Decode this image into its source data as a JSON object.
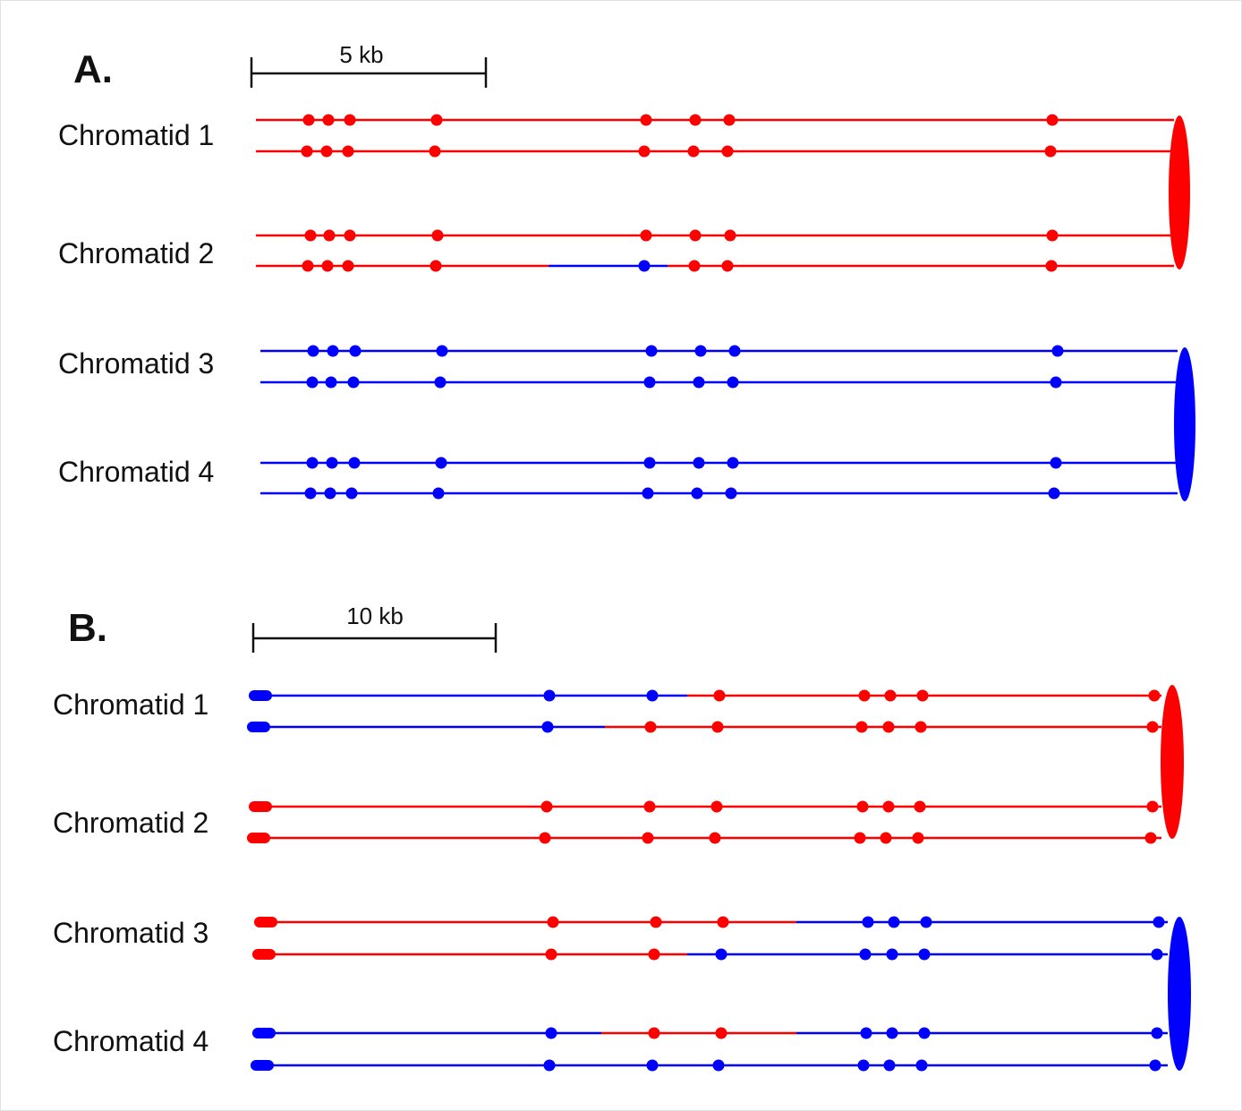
{
  "colors": {
    "maternal": "#ff0000",
    "paternal": "#0000ff",
    "scale": "#111111"
  },
  "panels": [
    {
      "label": "A.",
      "scale_bar": {
        "label": "5 kb"
      },
      "rows": [
        {
          "label": "Chromatid 1",
          "strands": [
            {
              "segments": [
                {
                  "color": "red"
                }
              ]
            },
            {
              "segments": [
                {
                  "color": "red"
                }
              ]
            }
          ]
        },
        {
          "label": "Chromatid 2",
          "strands": [
            {
              "segments": [
                {
                  "color": "red"
                }
              ]
            },
            {
              "segments": [
                {
                  "color": "red"
                },
                {
                  "color": "blue"
                },
                {
                  "color": "red"
                }
              ]
            }
          ]
        },
        {
          "label": "Chromatid 3",
          "strands": [
            {
              "segments": [
                {
                  "color": "blue"
                }
              ]
            },
            {
              "segments": [
                {
                  "color": "blue"
                }
              ]
            }
          ]
        },
        {
          "label": "Chromatid 4",
          "strands": [
            {
              "segments": [
                {
                  "color": "blue"
                }
              ]
            },
            {
              "segments": [
                {
                  "color": "blue"
                }
              ]
            }
          ]
        }
      ],
      "centromeres": [
        {
          "color": "red"
        },
        {
          "color": "blue"
        }
      ]
    },
    {
      "label": "B.",
      "scale_bar": {
        "label": "10 kb"
      },
      "rows": [
        {
          "label": "Chromatid 1",
          "strands": [
            {
              "segments": [
                {
                  "color": "blue"
                },
                {
                  "color": "red"
                }
              ]
            },
            {
              "segments": [
                {
                  "color": "blue"
                },
                {
                  "color": "red"
                }
              ]
            }
          ]
        },
        {
          "label": "Chromatid 2",
          "strands": [
            {
              "segments": [
                {
                  "color": "red"
                }
              ]
            },
            {
              "segments": [
                {
                  "color": "red"
                }
              ]
            }
          ]
        },
        {
          "label": "Chromatid 3",
          "strands": [
            {
              "segments": [
                {
                  "color": "red"
                },
                {
                  "color": "blue"
                }
              ]
            },
            {
              "segments": [
                {
                  "color": "red"
                },
                {
                  "color": "blue"
                }
              ]
            }
          ]
        },
        {
          "label": "Chromatid 4",
          "strands": [
            {
              "segments": [
                {
                  "color": "blue"
                },
                {
                  "color": "red"
                },
                {
                  "color": "blue"
                }
              ]
            },
            {
              "segments": [
                {
                  "color": "blue"
                }
              ]
            }
          ]
        }
      ],
      "centromeres": [
        {
          "color": "red"
        },
        {
          "color": "blue"
        }
      ]
    }
  ]
}
